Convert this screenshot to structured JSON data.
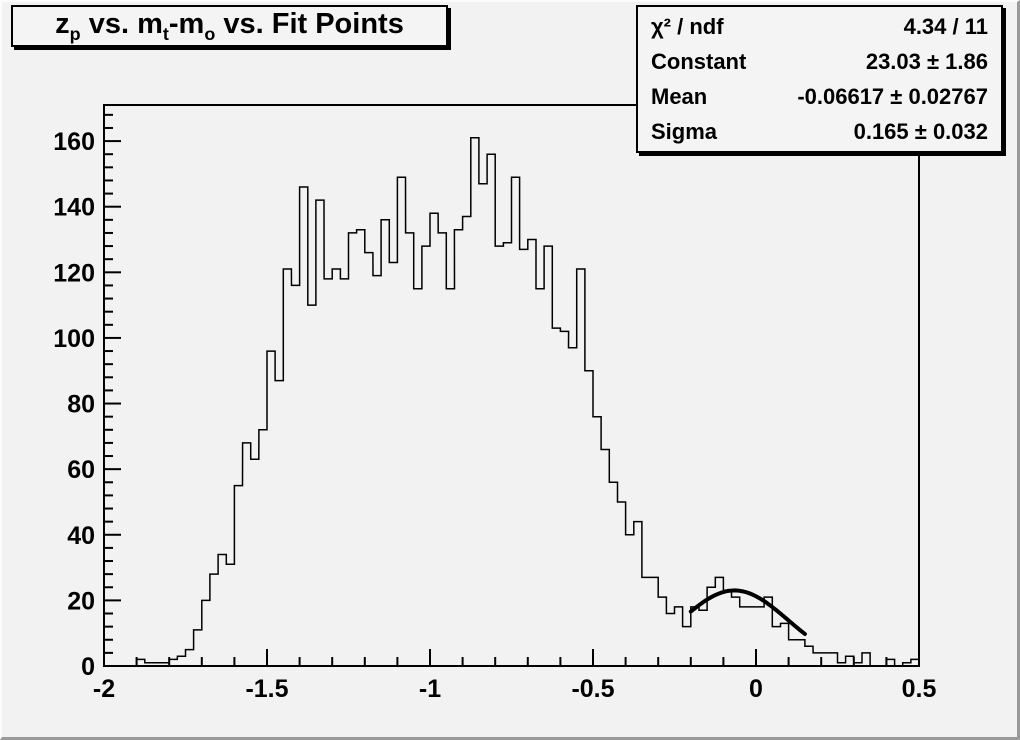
{
  "title_box": {
    "title_plain": "z_p vs. m_t-m_o vs. Fit Points",
    "segments": [
      {
        "text": "z"
      },
      {
        "sub": "p"
      },
      {
        "text": " vs. m"
      },
      {
        "sub": "t"
      },
      {
        "text": "-m"
      },
      {
        "sub": "o"
      },
      {
        "text": " vs. Fit Points"
      }
    ]
  },
  "stats_box": {
    "rows": [
      {
        "label": "χ² / ndf",
        "value": "4.34 / 11"
      },
      {
        "label": "Constant",
        "value": "23.03 ± 1.86"
      },
      {
        "label": "Mean",
        "value": "-0.06617 ± 0.02767"
      },
      {
        "label": "Sigma",
        "value": "0.165 ± 0.032"
      }
    ]
  },
  "axes": {
    "x": {
      "min": -2,
      "max": 0.5,
      "major_ticks": [
        -2,
        -1.5,
        -1,
        -0.5,
        0,
        0.5
      ],
      "tick_labels": [
        "-2",
        "-1.5",
        "-1",
        "-0.5",
        "0",
        "0.5"
      ],
      "minor_step": 0.1
    },
    "y": {
      "min": 0,
      "max": 171,
      "major_ticks": [
        0,
        20,
        40,
        60,
        80,
        100,
        120,
        140,
        160
      ],
      "tick_labels": [
        "0",
        "20",
        "40",
        "60",
        "80",
        "100",
        "120",
        "140",
        "160"
      ],
      "minor_step": 4
    }
  },
  "chart_data": {
    "type": "bar",
    "render_style": "root-step-histogram",
    "title": "z_p vs. m_t-m_o vs. Fit Points",
    "xlabel": "",
    "ylabel": "",
    "xlim": [
      -2,
      0.5
    ],
    "ylim": [
      0,
      171
    ],
    "grid": false,
    "legend": false,
    "bin_start": -2.0,
    "bin_width": 0.025,
    "n_bins": 100,
    "values": [
      0,
      0,
      0,
      0,
      2,
      1,
      1,
      1,
      2,
      3,
      5,
      11,
      20,
      28,
      34,
      31,
      55,
      68,
      63,
      72,
      96,
      87,
      121,
      116,
      146,
      110,
      142,
      118,
      121,
      118,
      132,
      133,
      126,
      119,
      136,
      123,
      149,
      132,
      115,
      128,
      138,
      132,
      115,
      133,
      137,
      161,
      147,
      156,
      128,
      129,
      149,
      127,
      130,
      115,
      128,
      103,
      102,
      97,
      121,
      90,
      76,
      66,
      56,
      50,
      40,
      44,
      27,
      27,
      21,
      16,
      18,
      12,
      18,
      17,
      24,
      27,
      23,
      21,
      18,
      18,
      18,
      21,
      12,
      13,
      8,
      8,
      6,
      4,
      4,
      4,
      1,
      3,
      1,
      4,
      0,
      0,
      2,
      0,
      1,
      2
    ],
    "line_color": "#000000",
    "fit_curve": {
      "type": "gaussian",
      "constant": 23.03,
      "mean": -0.06617,
      "sigma": 0.165,
      "draw_range": [
        -0.2,
        0.15
      ],
      "color": "#000000",
      "line_width": 4
    }
  },
  "colors": {
    "canvas_bg": "#f2f2f2",
    "pave_bg": "#f4f4f4",
    "frame_line": "#000000",
    "histogram_line": "#000000",
    "bevel_light": "#fcfcfc",
    "bevel_dark": "#9a9a9a"
  }
}
